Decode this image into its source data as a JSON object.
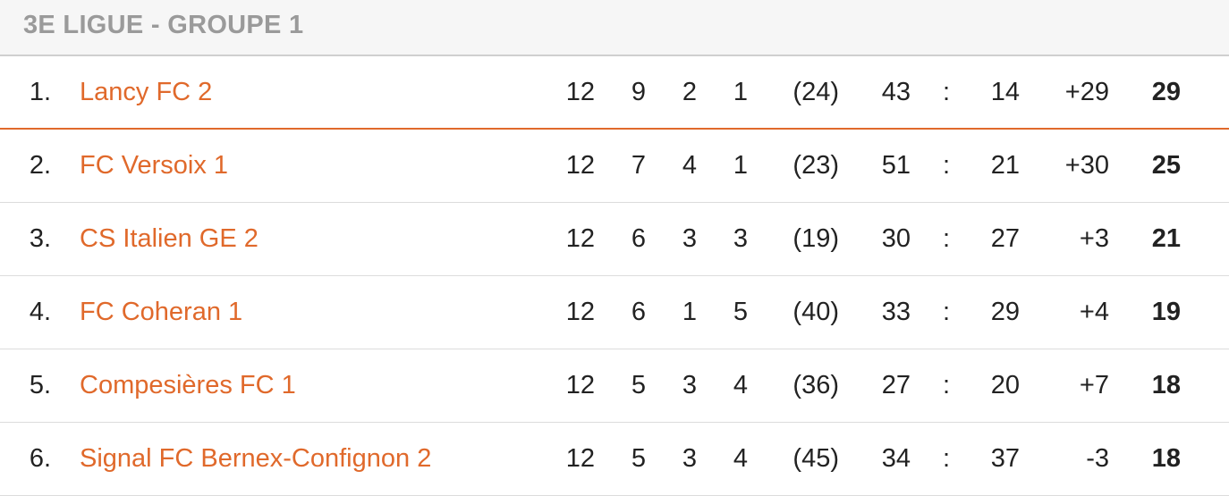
{
  "header": {
    "title": "3E LIGUE - GROUPE 1"
  },
  "accent_color": "#e0692b",
  "rows": [
    {
      "rank": "1.",
      "team": "Lancy FC 2",
      "played": "12",
      "won": "9",
      "drawn": "2",
      "lost": "1",
      "fair": "(24)",
      "gf": "43",
      "sep": ":",
      "ga": "14",
      "diff": "+29",
      "pts": "29"
    },
    {
      "rank": "2.",
      "team": "FC Versoix 1",
      "played": "12",
      "won": "7",
      "drawn": "4",
      "lost": "1",
      "fair": "(23)",
      "gf": "51",
      "sep": ":",
      "ga": "21",
      "diff": "+30",
      "pts": "25"
    },
    {
      "rank": "3.",
      "team": "CS Italien GE 2",
      "played": "12",
      "won": "6",
      "drawn": "3",
      "lost": "3",
      "fair": "(19)",
      "gf": "30",
      "sep": ":",
      "ga": "27",
      "diff": "+3",
      "pts": "21"
    },
    {
      "rank": "4.",
      "team": "FC Coheran 1",
      "played": "12",
      "won": "6",
      "drawn": "1",
      "lost": "5",
      "fair": "(40)",
      "gf": "33",
      "sep": ":",
      "ga": "29",
      "diff": "+4",
      "pts": "19"
    },
    {
      "rank": "5.",
      "team": "Compesières FC 1",
      "played": "12",
      "won": "5",
      "drawn": "3",
      "lost": "4",
      "fair": "(36)",
      "gf": "27",
      "sep": ":",
      "ga": "20",
      "diff": "+7",
      "pts": "18"
    },
    {
      "rank": "6.",
      "team": "Signal FC Bernex-Confignon 2",
      "played": "12",
      "won": "5",
      "drawn": "3",
      "lost": "4",
      "fair": "(45)",
      "gf": "34",
      "sep": ":",
      "ga": "37",
      "diff": "-3",
      "pts": "18"
    }
  ]
}
